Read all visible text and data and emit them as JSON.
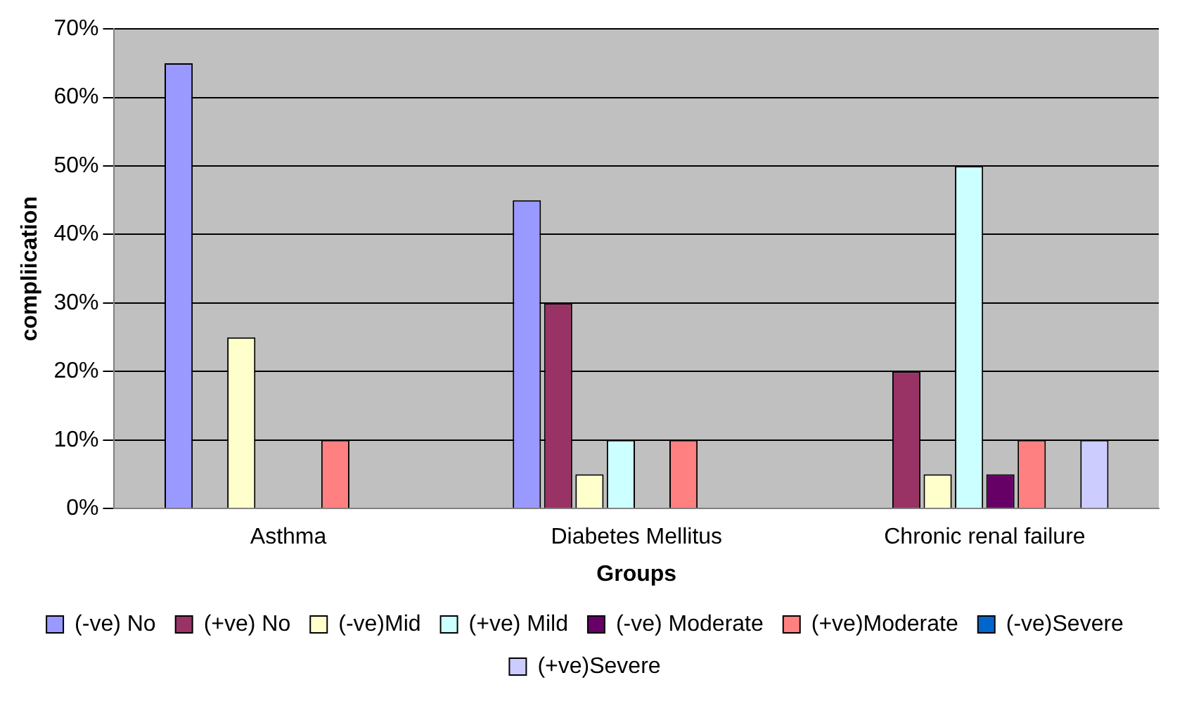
{
  "chart_data": {
    "type": "bar",
    "xlabel": "Groups",
    "ylabel": "compliication",
    "categories": [
      "Asthma",
      "Diabetes Mellitus",
      "Chronic renal failure"
    ],
    "series": [
      {
        "name": "(-ve) No",
        "color": "#9999ff",
        "values": [
          65,
          45,
          0
        ]
      },
      {
        "name": "(+ve) No",
        "color": "#993366",
        "values": [
          0,
          30,
          20
        ]
      },
      {
        "name": "(-ve)Mid",
        "color": "#ffffcc",
        "values": [
          25,
          5,
          5
        ]
      },
      {
        "name": "(+ve) Mild",
        "color": "#ccffff",
        "values": [
          0,
          10,
          50
        ]
      },
      {
        "name": "(-ve) Moderate",
        "color": "#660066",
        "values": [
          0,
          0,
          5
        ]
      },
      {
        "name": "(+ve)Moderate",
        "color": "#ff8080",
        "values": [
          10,
          10,
          10
        ]
      },
      {
        "name": "(-ve)Severe",
        "color": "#0066cc",
        "values": [
          0,
          0,
          0
        ]
      },
      {
        "name": "(+ve)Severe",
        "color": "#ccccff",
        "values": [
          0,
          0,
          10
        ]
      }
    ],
    "ylim": [
      0,
      70
    ],
    "yticks": [
      {
        "value": 0,
        "label": "0%"
      },
      {
        "value": 10,
        "label": "10%"
      },
      {
        "value": 20,
        "label": "20%"
      },
      {
        "value": 30,
        "label": "30%"
      },
      {
        "value": 40,
        "label": "40%"
      },
      {
        "value": 50,
        "label": "50%"
      },
      {
        "value": 60,
        "label": "60%"
      },
      {
        "value": 70,
        "label": "70%"
      }
    ],
    "grid": "y",
    "legend": "bottom"
  }
}
